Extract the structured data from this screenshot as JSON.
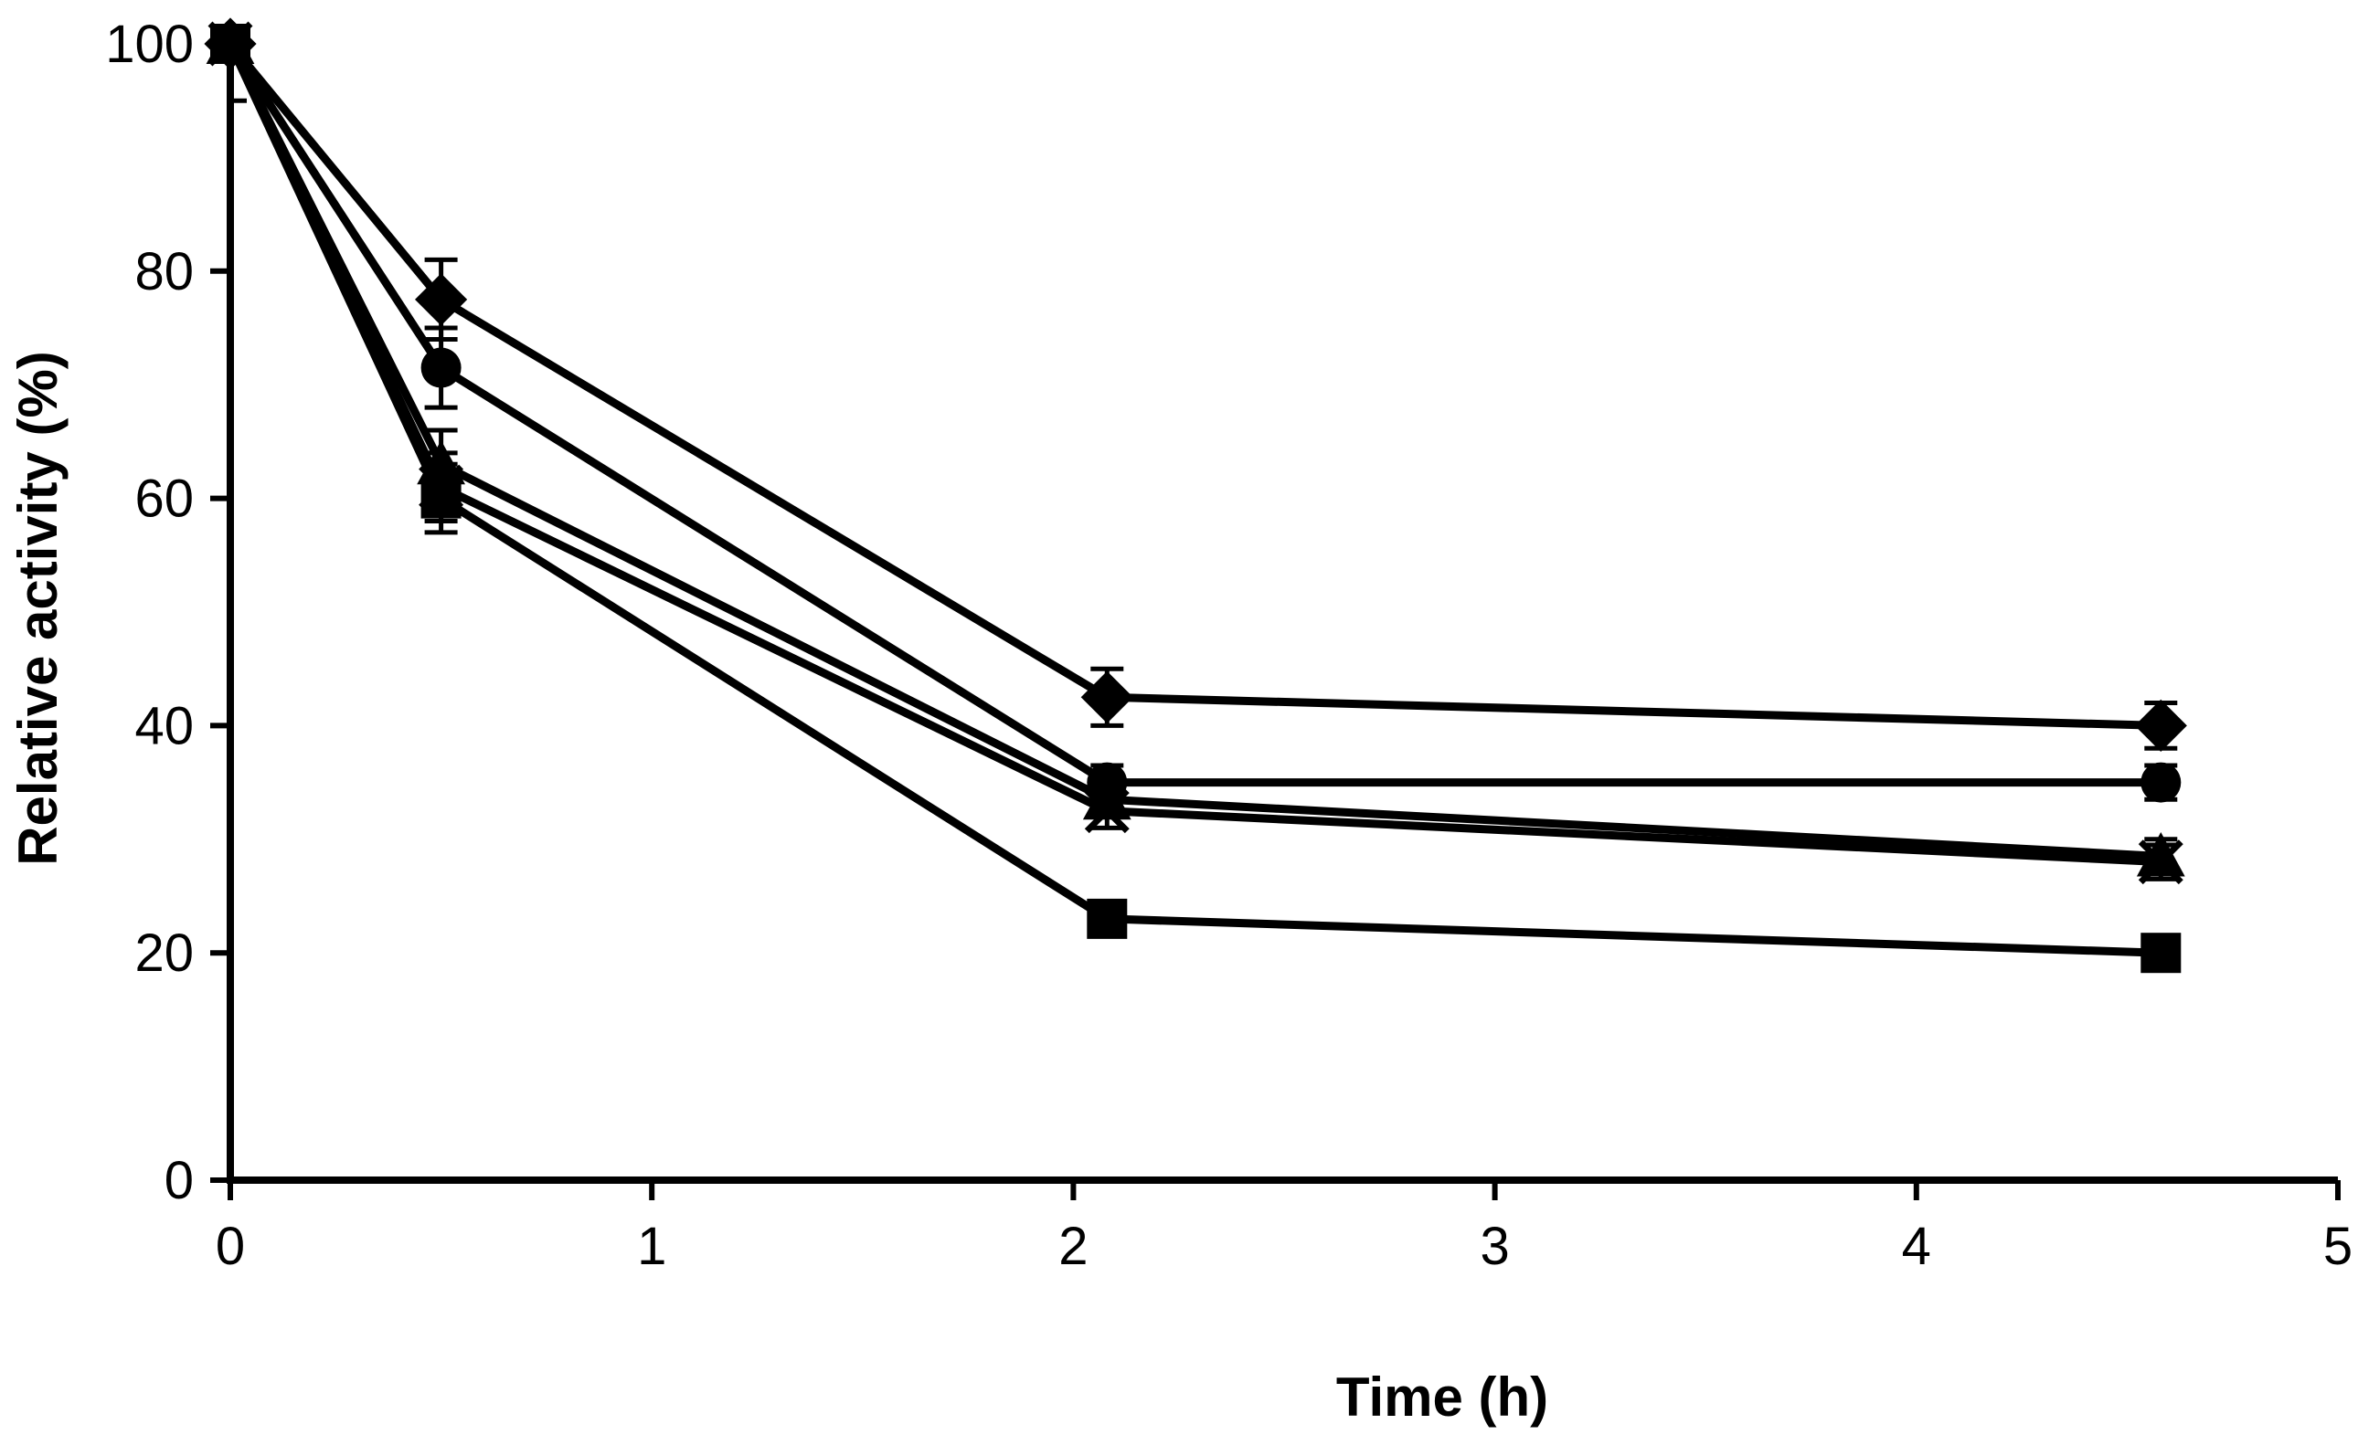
{
  "chart_data": {
    "type": "line",
    "title": "",
    "xlabel": "Time (h)",
    "ylabel": "Relative activity (%)",
    "xlim": [
      0,
      5
    ],
    "ylim": [
      0,
      100
    ],
    "xticks": [
      0,
      1,
      2,
      3,
      4,
      5
    ],
    "yticks": [
      0,
      20,
      40,
      60,
      80,
      100
    ],
    "grid": false,
    "legend": "none",
    "x": [
      0,
      0.5,
      2.08,
      4.58
    ],
    "series": [
      {
        "name": "diamond series",
        "marker": "diamond",
        "values": [
          100,
          77.5,
          42.5,
          40
        ],
        "errors": [
          0,
          3.5,
          2.5,
          2
        ]
      },
      {
        "name": "circle series",
        "marker": "circle",
        "values": [
          100,
          71.5,
          35,
          35
        ],
        "errors": [
          0,
          3.5,
          1.5,
          1.5
        ]
      },
      {
        "name": "triangle series",
        "marker": "triangle",
        "values": [
          100,
          63,
          33.5,
          28.5
        ],
        "errors": [
          0,
          3,
          1.5,
          1.5
        ]
      },
      {
        "name": "cross series",
        "marker": "cross",
        "values": [
          100,
          61,
          32.5,
          28
        ],
        "errors": [
          0,
          3,
          1.5,
          1.5
        ]
      },
      {
        "name": "square series",
        "marker": "square",
        "values": [
          100,
          60,
          23,
          20
        ],
        "errors": [
          0,
          3,
          1,
          1
        ]
      }
    ]
  }
}
